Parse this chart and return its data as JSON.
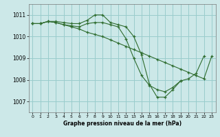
{
  "title": "Graphe pression niveau de la mer (hPa)",
  "bg_color": "#cce8e8",
  "grid_color": "#99cccc",
  "line_color": "#2d6b2d",
  "xlim": [
    -0.5,
    23.5
  ],
  "ylim": [
    1006.5,
    1011.5
  ],
  "xticks": [
    0,
    1,
    2,
    3,
    4,
    5,
    6,
    7,
    8,
    9,
    10,
    11,
    12,
    13,
    14,
    15,
    16,
    17,
    18,
    19,
    20,
    21,
    22,
    23
  ],
  "yticks": [
    1007,
    1008,
    1009,
    1010,
    1011
  ],
  "series": [
    {
      "x": [
        0,
        1,
        2,
        3,
        4,
        5,
        6,
        7,
        8,
        9,
        10,
        11,
        12,
        13,
        14,
        15,
        16,
        17,
        18,
        19,
        20,
        21,
        22
      ],
      "y": [
        1010.6,
        1010.6,
        1010.7,
        1010.7,
        1010.65,
        1010.6,
        1010.6,
        1010.75,
        1011.0,
        1011.0,
        1010.65,
        1010.55,
        1010.45,
        1010.0,
        1009.15,
        1007.8,
        1007.2,
        1007.2,
        1007.55,
        1007.95,
        1008.05,
        1008.3,
        1009.1
      ]
    },
    {
      "x": [
        0,
        1,
        2,
        3,
        4,
        5,
        6,
        7,
        8,
        9,
        10,
        11,
        12,
        13,
        14,
        15,
        16,
        17,
        18,
        19,
        20,
        21,
        22,
        23
      ],
      "y": [
        1010.6,
        1010.6,
        1010.7,
        1010.65,
        1010.55,
        1010.45,
        1010.35,
        1010.2,
        1010.1,
        1010.0,
        1009.85,
        1009.7,
        1009.55,
        1009.4,
        1009.25,
        1009.1,
        1008.95,
        1008.8,
        1008.65,
        1008.5,
        1008.35,
        1008.2,
        1008.05,
        1009.1
      ]
    },
    {
      "x": [
        0,
        1,
        2,
        3,
        4,
        5,
        6,
        7,
        8,
        9,
        10,
        11,
        12,
        13,
        14,
        15,
        16,
        17,
        18,
        19
      ],
      "y": [
        1010.6,
        1010.6,
        1010.7,
        1010.65,
        1010.55,
        1010.5,
        1010.45,
        1010.6,
        1010.65,
        1010.65,
        1010.55,
        1010.45,
        1009.9,
        1009.0,
        1008.2,
        1007.75,
        1007.55,
        1007.45,
        1007.65,
        1007.95
      ]
    }
  ]
}
